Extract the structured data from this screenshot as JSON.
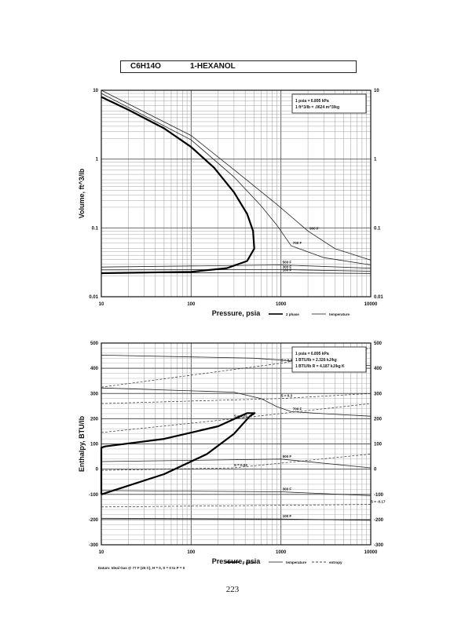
{
  "header": {
    "formula": "C6H14O",
    "name": "1-HEXANOL"
  },
  "page_number": "223",
  "chart_data": [
    {
      "type": "line",
      "id": "volume",
      "xscale": "log",
      "yscale": "log",
      "xlim": [
        10,
        10000
      ],
      "ylim": [
        0.01,
        10
      ],
      "xlabel": "Pressure,  psia",
      "ylabel": "Volume, ft^3/lb",
      "xticks": [
        "10",
        "100",
        "1000",
        "10000"
      ],
      "yticks": [
        "0.01",
        "0.1",
        "1",
        "10"
      ],
      "grid": true,
      "info": [
        "1 psia  =  6.895 kPa",
        "1 ft^3/lb  =  .0624 m^3/kg"
      ],
      "legend": [
        {
          "label": "2 phase",
          "style": "thick"
        },
        {
          "label": "temperature",
          "style": "thin"
        }
      ],
      "dome": [
        {
          "x": 10,
          "y": 0.022
        },
        {
          "x": 100,
          "y": 0.023
        },
        {
          "x": 250,
          "y": 0.026
        },
        {
          "x": 420,
          "y": 0.033
        },
        {
          "x": 505,
          "y": 0.05
        },
        {
          "x": 490,
          "y": 0.09
        },
        {
          "x": 420,
          "y": 0.16
        },
        {
          "x": 300,
          "y": 0.33
        },
        {
          "x": 180,
          "y": 0.75
        },
        {
          "x": 100,
          "y": 1.5
        },
        {
          "x": 50,
          "y": 2.8
        },
        {
          "x": 20,
          "y": 5.2
        },
        {
          "x": 10,
          "y": 8.0
        }
      ],
      "isotherms": [
        {
          "name": "100 F",
          "points": [
            {
              "x": 10,
              "y": 0.0222
            },
            {
              "x": 1000,
              "y": 0.0223
            },
            {
              "x": 10000,
              "y": 0.0218
            }
          ]
        },
        {
          "name": "300 F",
          "points": [
            {
              "x": 10,
              "y": 0.0245
            },
            {
              "x": 1000,
              "y": 0.0248
            },
            {
              "x": 10000,
              "y": 0.0235
            }
          ]
        },
        {
          "name": "500 F",
          "points": [
            {
              "x": 10,
              "y": 0.027
            },
            {
              "x": 1000,
              "y": 0.029
            },
            {
              "x": 10000,
              "y": 0.026
            }
          ]
        },
        {
          "name": "700 F",
          "points": [
            {
              "x": 10,
              "y": 9.0
            },
            {
              "x": 100,
              "y": 1.9
            },
            {
              "x": 300,
              "y": 0.55
            },
            {
              "x": 600,
              "y": 0.21
            },
            {
              "x": 900,
              "y": 0.11
            },
            {
              "x": 1300,
              "y": 0.055
            },
            {
              "x": 3000,
              "y": 0.037
            },
            {
              "x": 10000,
              "y": 0.029
            }
          ]
        },
        {
          "name": "900 F",
          "points": [
            {
              "x": 10,
              "y": 10.0
            },
            {
              "x": 100,
              "y": 2.2
            },
            {
              "x": 300,
              "y": 0.7
            },
            {
              "x": 900,
              "y": 0.22
            },
            {
              "x": 2000,
              "y": 0.09
            },
            {
              "x": 4000,
              "y": 0.05
            },
            {
              "x": 10000,
              "y": 0.034
            }
          ]
        }
      ]
    },
    {
      "type": "line",
      "id": "enthalpy",
      "xscale": "log",
      "yscale": "linear",
      "xlim": [
        10,
        10000
      ],
      "ylim": [
        -300,
        500
      ],
      "xlabel": "Pressure,  psia",
      "ylabel": "Enthalpy, BTU/lb",
      "xticks": [
        "10",
        "100",
        "1000",
        "10000"
      ],
      "yticks": [
        "-300",
        "-200",
        "-100",
        "0",
        "100",
        "200",
        "300",
        "400",
        "500"
      ],
      "grid": true,
      "info": [
        "1 psia  =  6.895 kPa",
        "1 BTU/lb  =  2.326 kJ/kg",
        "1 BTU/lb R  =  4.187 kJ/kg K"
      ],
      "legend": [
        {
          "label": "2 phase",
          "style": "thick"
        },
        {
          "label": "temperature",
          "style": "thin"
        },
        {
          "label": "entropy",
          "style": "dashed"
        }
      ],
      "footnote": "Datum: Ideal Gas @ 77 F (25 C),  H = 0,  S = 0 to P = 0",
      "dome": [
        {
          "x": 10,
          "y": -100
        },
        {
          "x": 50,
          "y": -20
        },
        {
          "x": 150,
          "y": 60
        },
        {
          "x": 300,
          "y": 140
        },
        {
          "x": 450,
          "y": 210
        },
        {
          "x": 510,
          "y": 222
        },
        {
          "x": 420,
          "y": 222
        },
        {
          "x": 200,
          "y": 170
        },
        {
          "x": 50,
          "y": 120
        },
        {
          "x": 11,
          "y": 90
        },
        {
          "x": 10,
          "y": 85
        },
        {
          "x": 10,
          "y": -100
        }
      ],
      "isotherms": [
        {
          "name": "100 F",
          "points": [
            {
              "x": 10,
              "y": -195
            },
            {
              "x": 1000,
              "y": -198
            },
            {
              "x": 10000,
              "y": -203
            }
          ]
        },
        {
          "name": "300 F",
          "points": [
            {
              "x": 10,
              "y": -85
            },
            {
              "x": 1000,
              "y": -90
            },
            {
              "x": 10000,
              "y": -105
            }
          ]
        },
        {
          "name": "500 F",
          "points": [
            {
              "x": 10,
              "y": 30
            },
            {
              "x": 1000,
              "y": 40
            },
            {
              "x": 10000,
              "y": 5
            }
          ]
        },
        {
          "name": "700 F",
          "points": [
            {
              "x": 10,
              "y": 322
            },
            {
              "x": 300,
              "y": 305
            },
            {
              "x": 600,
              "y": 280
            },
            {
              "x": 900,
              "y": 248
            },
            {
              "x": 1300,
              "y": 228
            },
            {
              "x": 3000,
              "y": 220
            },
            {
              "x": 10000,
              "y": 210
            }
          ]
        },
        {
          "name": "900 F",
          "points": [
            {
              "x": 10,
              "y": 452
            },
            {
              "x": 500,
              "y": 440
            },
            {
              "x": 2000,
              "y": 425
            },
            {
              "x": 10000,
              "y": 410
            }
          ]
        }
      ],
      "entropy_lines": [
        {
          "name": "S = -0.17",
          "points": [
            {
              "x": 10,
              "y": -150
            },
            {
              "x": 10000,
              "y": -140
            }
          ]
        },
        {
          "name": "S = 0.03",
          "points": [
            {
              "x": 10,
              "y": -5
            },
            {
              "x": 300,
              "y": 5
            },
            {
              "x": 10000,
              "y": 60
            }
          ]
        },
        {
          "name": "S = 0.23",
          "points": [
            {
              "x": 10,
              "y": 145
            },
            {
              "x": 300,
              "y": 200
            },
            {
              "x": 10000,
              "y": 260
            }
          ]
        },
        {
          "name": "S = 0.3",
          "points": [
            {
              "x": 10,
              "y": 260
            },
            {
              "x": 1000,
              "y": 280
            },
            {
              "x": 10000,
              "y": 300
            }
          ]
        },
        {
          "name": "S = 0.37",
          "points": [
            {
              "x": 10,
              "y": 325
            },
            {
              "x": 1000,
              "y": 420
            },
            {
              "x": 10000,
              "y": 480
            }
          ]
        }
      ]
    }
  ]
}
